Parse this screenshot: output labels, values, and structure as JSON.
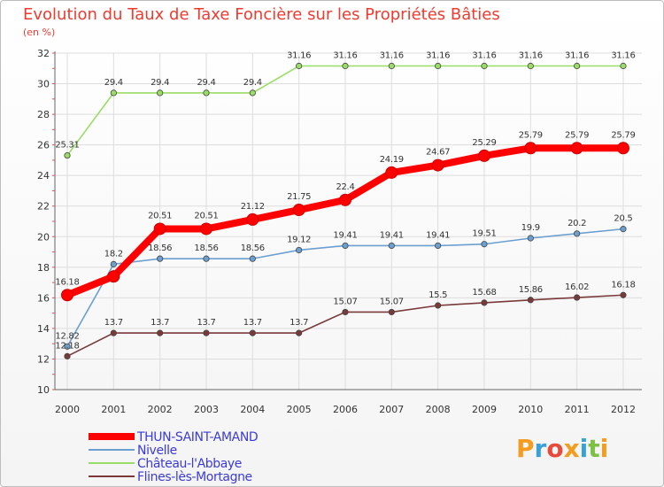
{
  "chart_data": {
    "type": "line",
    "title": "Evolution du Taux de Taxe Foncière sur les Propriétés Bâties",
    "subtitle": "(en %)",
    "xlabel": "",
    "ylabel": "",
    "categories": [
      "2000",
      "2001",
      "2002",
      "2003",
      "2004",
      "2005",
      "2006",
      "2007",
      "2008",
      "2009",
      "2010",
      "2011",
      "2012"
    ],
    "ylim": [
      10,
      32
    ],
    "yticks": [
      10,
      12,
      14,
      16,
      18,
      20,
      22,
      24,
      26,
      28,
      30,
      32
    ],
    "grid": true,
    "legend_position": "bottom-left",
    "series": [
      {
        "name": "THUN-SAINT-AMAND",
        "color": "#ff0000",
        "values": [
          16.18,
          17.4,
          20.51,
          20.51,
          21.12,
          21.75,
          22.4,
          24.19,
          24.67,
          25.29,
          25.79,
          25.79,
          25.79
        ],
        "labels": [
          "16.18",
          "",
          "20.51",
          "20.51",
          "21.12",
          "21.75",
          "22.4",
          "24.19",
          "24.67",
          "25.29",
          "25.79",
          "25.79",
          "25.79"
        ]
      },
      {
        "name": "Nivelle",
        "color": "#6b9fd0",
        "values": [
          12.82,
          18.2,
          18.56,
          18.56,
          18.56,
          19.12,
          19.41,
          19.41,
          19.41,
          19.51,
          19.9,
          20.2,
          20.5
        ],
        "labels": [
          "12.82",
          "18.2",
          "18.56",
          "18.56",
          "18.56",
          "19.12",
          "19.41",
          "19.41",
          "19.41",
          "19.51",
          "19.9",
          "20.2",
          "20.5"
        ]
      },
      {
        "name": "Château-l'Abbaye",
        "color": "#99dd66",
        "values": [
          25.31,
          29.4,
          29.4,
          29.4,
          29.4,
          31.16,
          31.16,
          31.16,
          31.16,
          31.16,
          31.16,
          31.16,
          31.16
        ],
        "labels": [
          "25.31",
          "29.4",
          "29.4",
          "29.4",
          "29.4",
          "31.16",
          "31.16",
          "31.16",
          "31.16",
          "31.16",
          "31.16",
          "31.16",
          "31.16"
        ]
      },
      {
        "name": "Flines-lès-Mortagne",
        "color": "#7a3a3a",
        "values": [
          12.18,
          13.7,
          13.7,
          13.7,
          13.7,
          13.7,
          15.07,
          15.07,
          15.5,
          15.68,
          15.86,
          16.02,
          16.18
        ],
        "labels": [
          "12.18",
          "13.7",
          "13.7",
          "13.7",
          "13.7",
          "13.7",
          "15.07",
          "15.07",
          "15.5",
          "15.68",
          "15.86",
          "16.02",
          "16.18"
        ]
      }
    ]
  },
  "brand": {
    "letters": [
      "P",
      "r",
      "o",
      "x",
      "i",
      "t",
      "i"
    ],
    "colors": [
      "#f39c1f",
      "#3aa0d8",
      "#e84b3c",
      "#f39c1f",
      "#3aa0d8",
      "#7cc142",
      "#f39c1f"
    ]
  },
  "colors": {
    "title": "#ee3b2f",
    "grid": "#dddddd",
    "legend_text": "#3b3bd8"
  }
}
